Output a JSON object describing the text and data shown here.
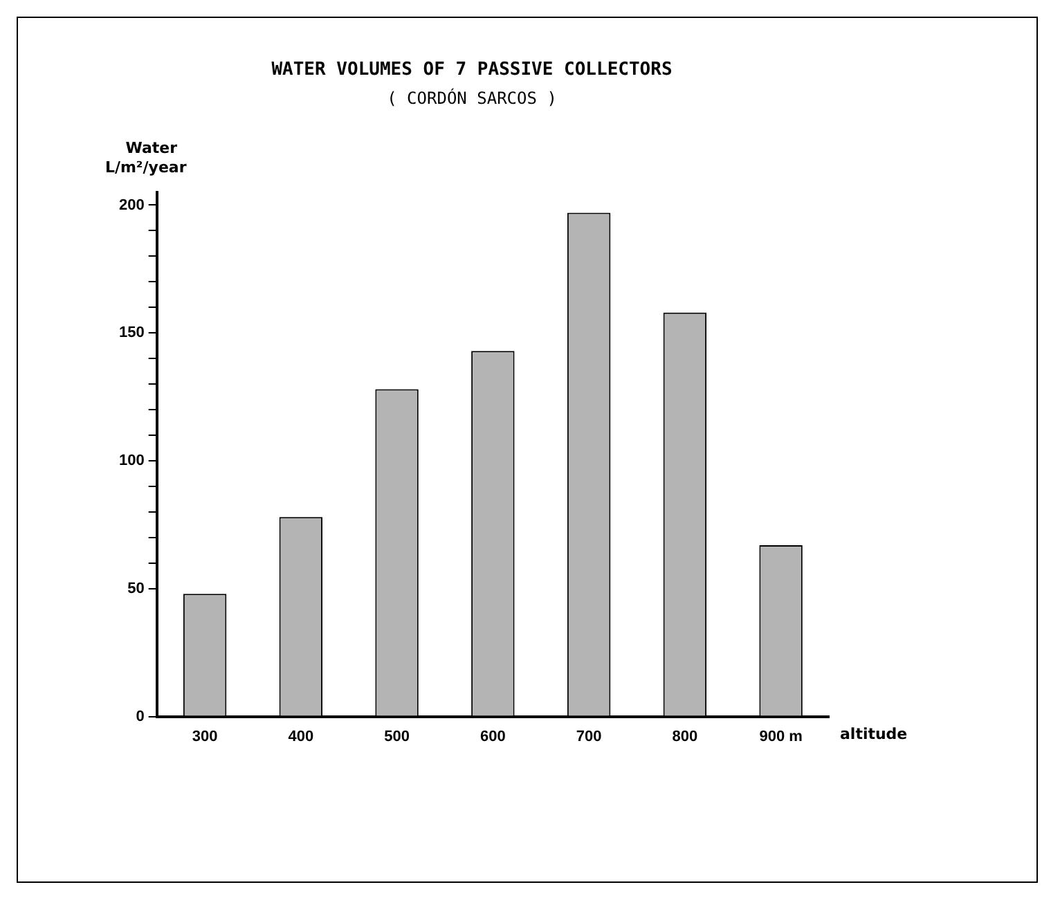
{
  "chart_data": {
    "type": "bar",
    "title": "WATER VOLUMES OF 7 PASSIVE COLLECTORS",
    "subtitle": "( CORDÓN SARCOS )",
    "ylabel": "Water L/m²/year",
    "xlabel": "altitude",
    "categories": [
      "300",
      "400",
      "500",
      "600",
      "700",
      "800",
      "900 m"
    ],
    "series": [
      {
        "color": "#b4b4b4",
        "values": [
          48,
          78,
          128,
          143,
          197,
          158,
          67
        ]
      }
    ],
    "ylim": [
      0,
      205
    ],
    "yticks": [
      0,
      50,
      {
        "value": 60,
        "label": null
      },
      {
        "value": 70,
        "label": null
      },
      {
        "value": 80,
        "label": null
      },
      {
        "value": 90,
        "label": null
      },
      100,
      {
        "value": 110,
        "label": null
      },
      {
        "value": 120,
        "label": null
      },
      {
        "value": 130,
        "label": null
      },
      {
        "value": 140,
        "label": null
      },
      150,
      {
        "value": 160,
        "label": null
      },
      {
        "value": 170,
        "label": null
      },
      {
        "value": 180,
        "label": null
      },
      {
        "value": 190,
        "label": null
      },
      200
    ],
    "grid": false,
    "legend": false
  }
}
